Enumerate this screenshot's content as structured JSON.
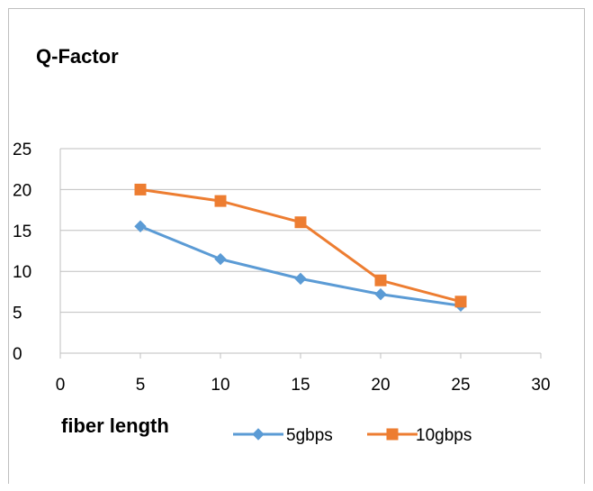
{
  "chart_data": {
    "type": "line",
    "title": "Q-Factor",
    "xlabel": "fiber length",
    "ylabel": "",
    "xlim": [
      0,
      30
    ],
    "ylim": [
      0,
      25
    ],
    "xticks": [
      "0",
      "5",
      "10",
      "15",
      "20",
      "25",
      "30"
    ],
    "yticks": [
      "0",
      "5",
      "10",
      "15",
      "20",
      "25"
    ],
    "grid": "horizontal",
    "legend_position": "bottom",
    "series": [
      {
        "name": "5gbps",
        "color": "#5b9bd5",
        "marker": "diamond",
        "x": [
          5,
          10,
          15,
          20,
          25
        ],
        "y": [
          15.5,
          11.5,
          9.1,
          7.2,
          5.8
        ]
      },
      {
        "name": "10gbps",
        "color": "#ed7d31",
        "marker": "square",
        "x": [
          5,
          10,
          15,
          20,
          25
        ],
        "y": [
          20.0,
          18.6,
          16.0,
          8.9,
          6.3
        ]
      }
    ]
  }
}
